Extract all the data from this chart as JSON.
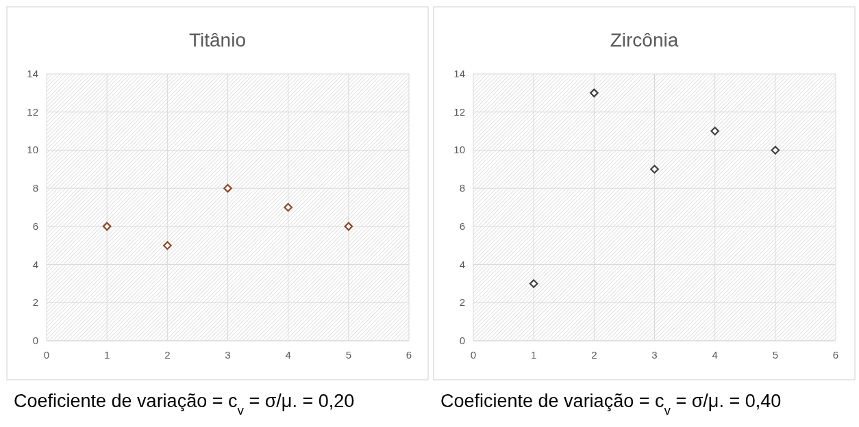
{
  "chart_data": [
    {
      "type": "scatter",
      "title": "Titânio",
      "x": [
        1,
        2,
        3,
        4,
        5
      ],
      "series": [
        {
          "color": "#8b4a2f",
          "values": [
            6,
            5,
            8,
            7,
            6
          ]
        }
      ],
      "xlim": [
        0,
        6
      ],
      "xticks": [
        0,
        1,
        2,
        3,
        4,
        5,
        6
      ],
      "ylim": [
        0,
        14
      ],
      "yticks": [
        0,
        2,
        4,
        6,
        8,
        10,
        12,
        14
      ],
      "grid": true,
      "marker": "diamond",
      "annotations": [
        "Coeficiente de variação = c$_{v}$ = σ/μ. = 0,20"
      ]
    },
    {
      "type": "scatter",
      "title": "Zircônia",
      "x": [
        1,
        2,
        3,
        4,
        5
      ],
      "series": [
        {
          "color": "#404040",
          "values": [
            3,
            13,
            9,
            11,
            10
          ]
        }
      ],
      "xlim": [
        0,
        6
      ],
      "xticks": [
        0,
        1,
        2,
        3,
        4,
        5,
        6
      ],
      "ylim": [
        0,
        14
      ],
      "yticks": [
        0,
        2,
        4,
        6,
        8,
        10,
        12,
        14
      ],
      "grid": true,
      "marker": "diamond",
      "annotations": [
        "Coeficiente de variação = c$_{v}$ = σ/μ. = 0,40"
      ]
    }
  ]
}
